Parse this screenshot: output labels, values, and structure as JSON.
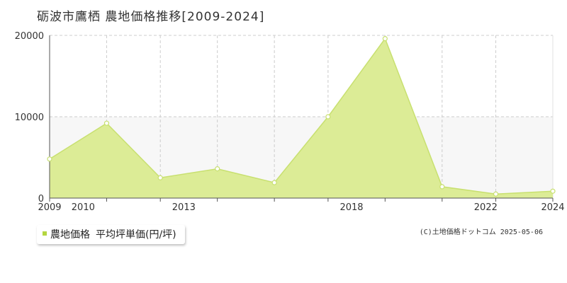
{
  "title": "砺波市鷹栖 農地価格推移[2009-2024]",
  "copyright": "(C)土地価格ドットコム 2025-05-06",
  "legend": {
    "series_label": "農地価格",
    "unit_label": "平均坪単価(円/坪)"
  },
  "colors": {
    "fill": "#dcec96",
    "line": "#c8e070",
    "swatch": "#b4d640",
    "grid": "#cccccc",
    "axis": "#555555",
    "band": "#f7f7f7"
  },
  "chart_data": {
    "type": "area",
    "title": "砺波市鷹栖 農地価格推移[2009-2024]",
    "xlabel": "",
    "ylabel": "",
    "xlim": [
      2009,
      2024
    ],
    "ylim": [
      0,
      20000
    ],
    "x_ticks": [
      "2009",
      "2010",
      "2013",
      "2018",
      "2022",
      "2024"
    ],
    "y_ticks": [
      "0",
      "10000",
      "20000"
    ],
    "grid": true,
    "legend_position": "bottom-left",
    "series": [
      {
        "name": "農地価格",
        "points": [
          {
            "x": 2009,
            "y": 4800
          },
          {
            "x": 2010.7,
            "y": 9200
          },
          {
            "x": 2012.3,
            "y": 2500
          },
          {
            "x": 2014,
            "y": 3600
          },
          {
            "x": 2015.7,
            "y": 1900
          },
          {
            "x": 2017.3,
            "y": 10000
          },
          {
            "x": 2019,
            "y": 19600
          },
          {
            "x": 2020.7,
            "y": 1400
          },
          {
            "x": 2022.3,
            "y": 500
          },
          {
            "x": 2024,
            "y": 850
          }
        ]
      }
    ]
  }
}
